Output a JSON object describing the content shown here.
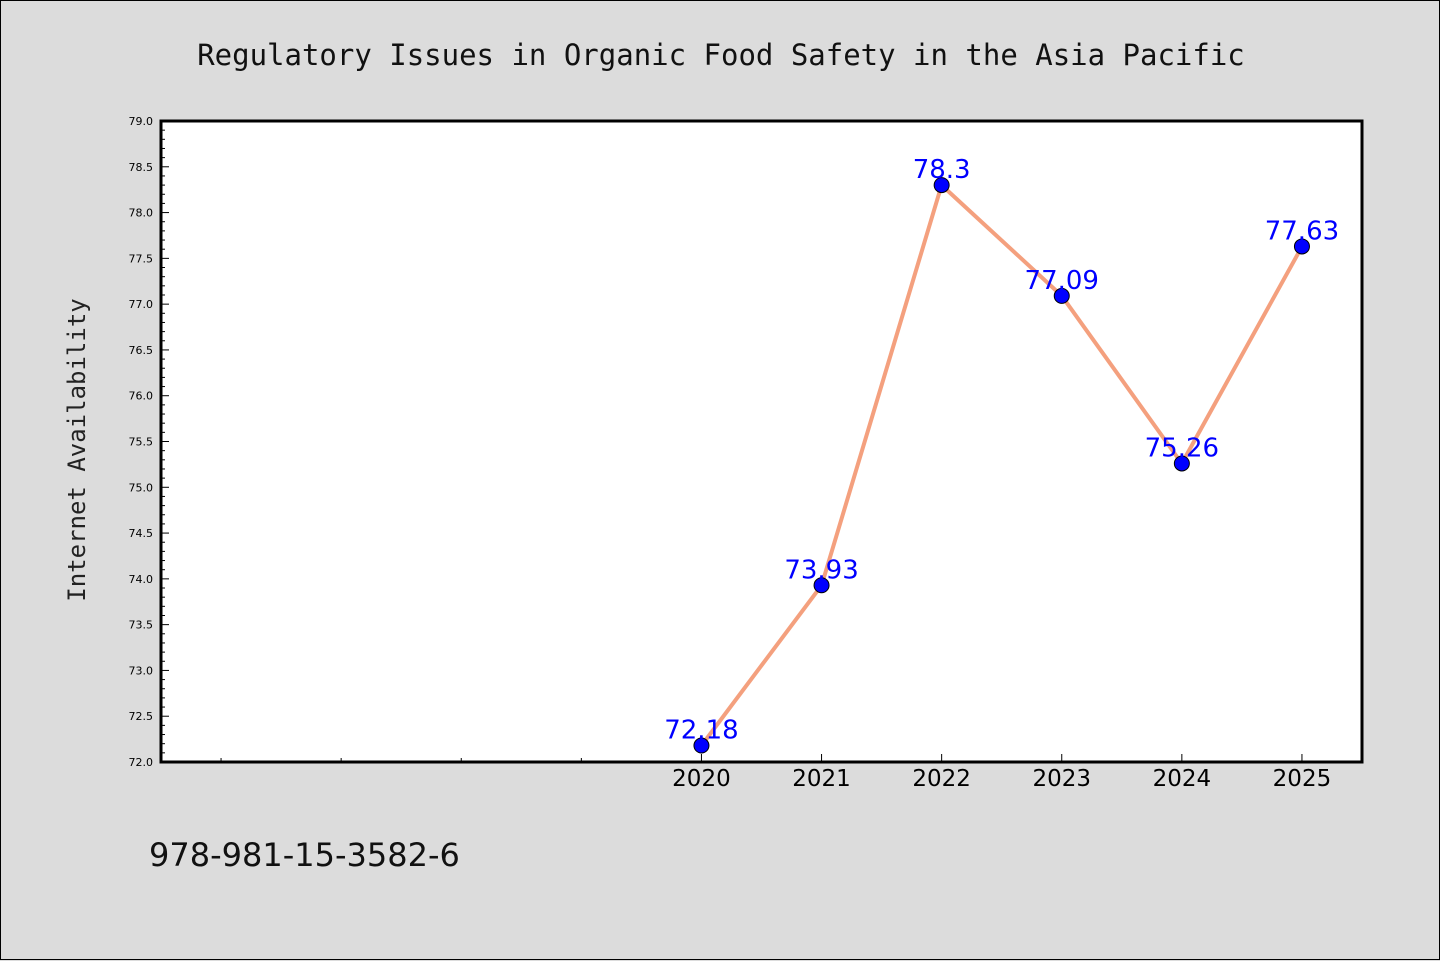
{
  "chart_data": {
    "type": "line",
    "title": "Regulatory Issues in Organic Food Safety in the Asia Pacific",
    "xlabel": "",
    "ylabel": "Internet Availability",
    "x": [
      "2020",
      "2021",
      "2022",
      "2023",
      "2024",
      "2025"
    ],
    "series": [
      {
        "values": [
          72.18,
          73.93,
          78.3,
          77.09,
          75.26,
          77.63
        ],
        "labels": [
          "72.18",
          "73.93",
          "78.3",
          "77.09",
          "75.26",
          "77.63"
        ],
        "line_color": "#f4a07e",
        "marker_color": "#0000ff"
      }
    ],
    "ylim": [
      72.0,
      79.0
    ],
    "yticks": [
      "72.0",
      "72.5",
      "73.0",
      "73.5",
      "74.0",
      "74.5",
      "75.0",
      "75.5",
      "76.0",
      "76.5",
      "77.0",
      "77.5",
      "78.0",
      "78.5",
      "79.0"
    ],
    "xlim_years": [
      2015.5,
      2025.5
    ],
    "grid": false,
    "legend": "none"
  },
  "footnote": "978-981-15-3582-6",
  "colors": {
    "background": "#dcdcdc",
    "plot_background": "#ffffff",
    "line": "#f4a07e",
    "marker": "#0000ff",
    "data_label": "#0000ff"
  }
}
